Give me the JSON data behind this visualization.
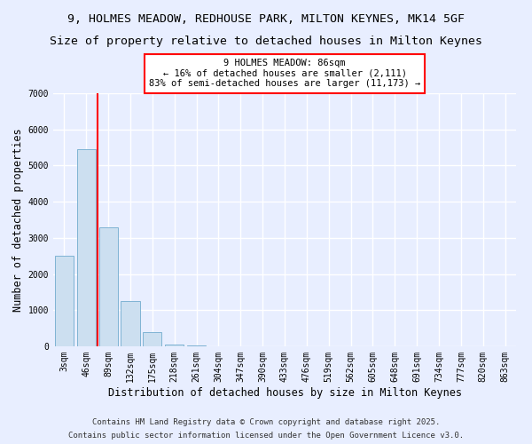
{
  "title_line1": "9, HOLMES MEADOW, REDHOUSE PARK, MILTON KEYNES, MK14 5GF",
  "title_line2": "Size of property relative to detached houses in Milton Keynes",
  "xlabel": "Distribution of detached houses by size in Milton Keynes",
  "ylabel": "Number of detached properties",
  "categories": [
    "3sqm",
    "46sqm",
    "89sqm",
    "132sqm",
    "175sqm",
    "218sqm",
    "261sqm",
    "304sqm",
    "347sqm",
    "390sqm",
    "433sqm",
    "476sqm",
    "519sqm",
    "562sqm",
    "605sqm",
    "648sqm",
    "691sqm",
    "734sqm",
    "777sqm",
    "820sqm",
    "863sqm"
  ],
  "values": [
    2500,
    5450,
    3300,
    1250,
    400,
    60,
    15,
    5,
    2,
    1,
    1,
    0,
    0,
    0,
    0,
    0,
    0,
    0,
    0,
    0,
    0
  ],
  "bar_color": "#ccdff0",
  "bar_edge_color": "#7fb3d3",
  "vline_x": 1.5,
  "vline_color": "red",
  "annotation_box_text": "9 HOLMES MEADOW: 86sqm\n← 16% of detached houses are smaller (2,111)\n83% of semi-detached houses are larger (11,173) →",
  "ylim": [
    0,
    7000
  ],
  "yticks": [
    0,
    1000,
    2000,
    3000,
    4000,
    5000,
    6000,
    7000
  ],
  "footer_line1": "Contains HM Land Registry data © Crown copyright and database right 2025.",
  "footer_line2": "Contains public sector information licensed under the Open Government Licence v3.0.",
  "background_color": "#e8eeff",
  "grid_color": "#ffffff",
  "title_fontsize": 9.5,
  "axis_label_fontsize": 8.5,
  "tick_fontsize": 7
}
